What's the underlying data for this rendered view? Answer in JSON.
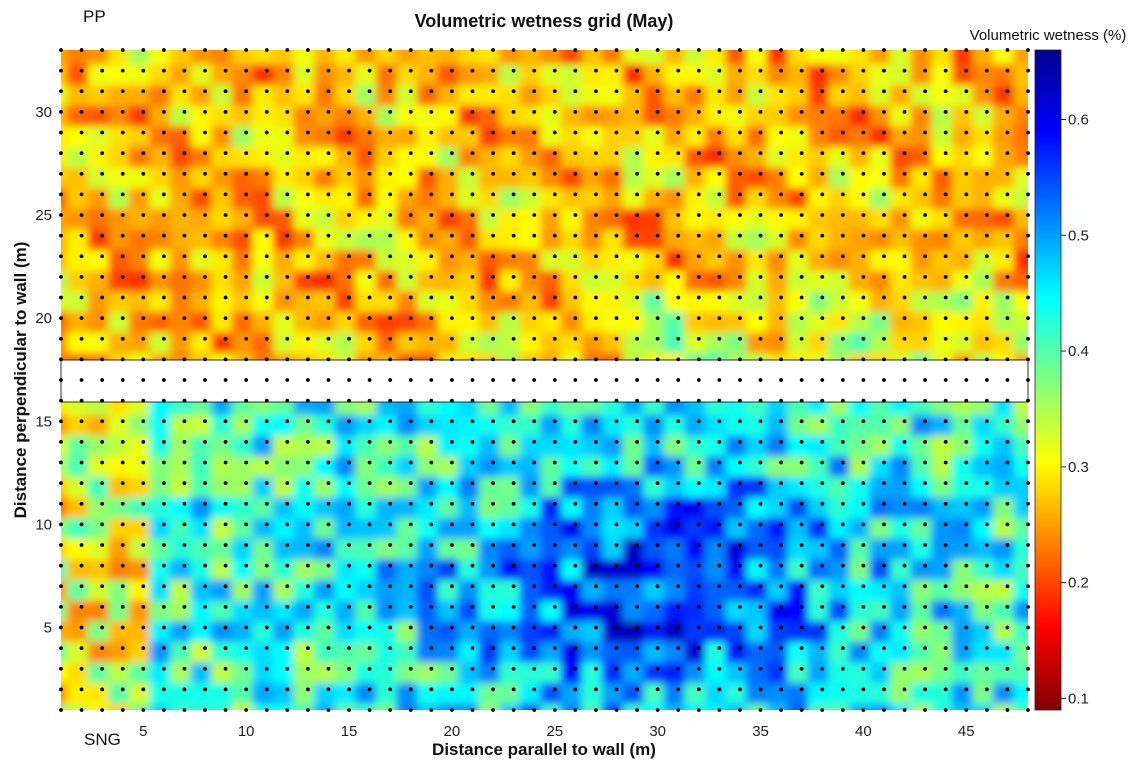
{
  "chart_data": {
    "type": "heatmap",
    "title": "Volumetric wetness grid (May)",
    "xlabel": "Distance parallel to wall (m)",
    "ylabel": "Distance perpendicular to wall (m)",
    "xlim": [
      1,
      48
    ],
    "ylim": [
      1,
      33
    ],
    "xticks": [
      5,
      10,
      15,
      20,
      25,
      30,
      35,
      40,
      45
    ],
    "yticks": [
      5,
      10,
      15,
      20,
      25,
      30
    ],
    "colorbar": {
      "title": "Volumetric wetness (%)",
      "range": [
        0.09,
        0.66
      ],
      "ticks": [
        0.1,
        0.2,
        0.3,
        0.4,
        0.5,
        0.6
      ],
      "colormap": "jet"
    },
    "panels": [
      {
        "name": "PP",
        "y_range": [
          18,
          33
        ],
        "mean_value": 0.27,
        "value_range": [
          0.18,
          0.45
        ]
      },
      {
        "name": "SNG",
        "y_range": [
          1,
          16
        ],
        "mean_value": 0.42,
        "value_range": [
          0.17,
          0.64
        ]
      }
    ],
    "gap_y_range": [
      16,
      18
    ],
    "sample_grid": {
      "x_start": 1,
      "x_end": 48,
      "x_step": 1,
      "y_start": 1,
      "y_end": 33,
      "y_step": 1
    },
    "grid": false,
    "legend": "colorbar-right"
  },
  "labels": {
    "top_corner": "PP",
    "bottom_corner": "SNG"
  }
}
